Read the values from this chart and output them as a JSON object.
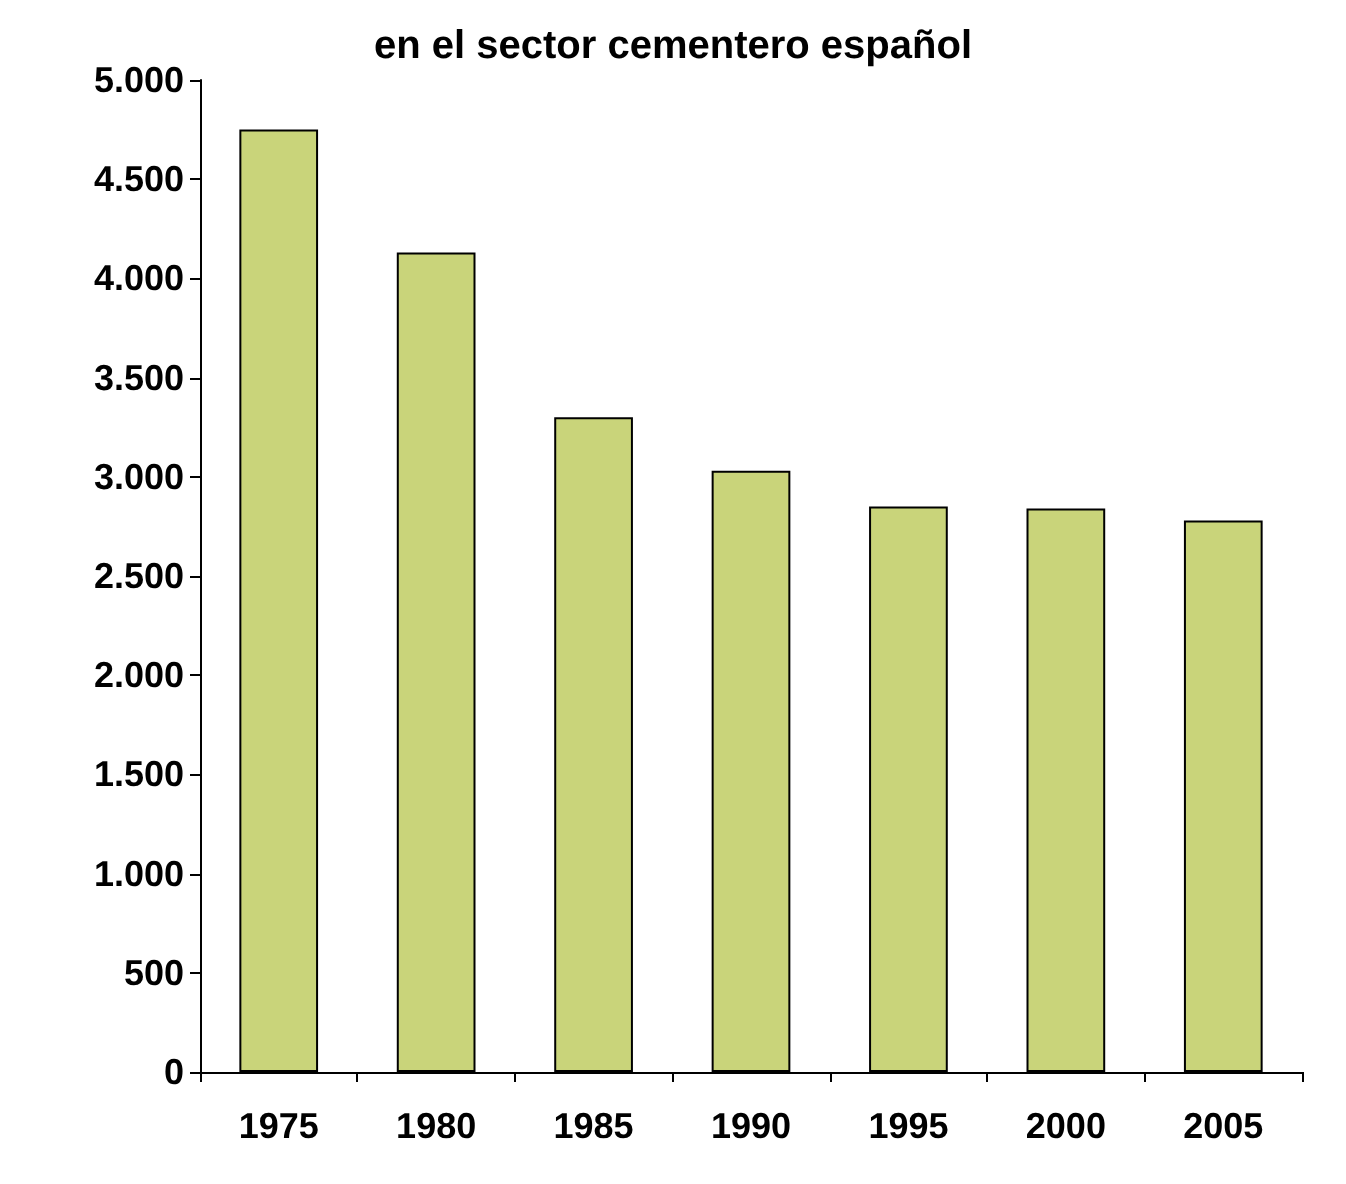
{
  "chart_data": {
    "type": "bar",
    "title": "en el sector cementero español",
    "categories": [
      "1975",
      "1980",
      "1985",
      "1990",
      "1995",
      "2000",
      "2005"
    ],
    "values": [
      4750,
      4130,
      3300,
      3030,
      2850,
      2840,
      2780
    ],
    "color": "#c9d47a",
    "ylim": [
      0,
      5000
    ],
    "yticks": [
      0,
      {
        "value": 500,
        "label": "500"
      },
      {
        "value": 1000,
        "label": "1.000"
      },
      {
        "value": 1500,
        "label": "1.500"
      },
      {
        "value": 2000,
        "label": "2.000"
      },
      {
        "value": 2500,
        "label": "2.500"
      },
      {
        "value": 3000,
        "label": "3.000"
      },
      {
        "value": 3500,
        "label": "3.500"
      },
      {
        "value": 4000,
        "label": "4.000"
      },
      {
        "value": 4500,
        "label": "4.500"
      },
      {
        "value": 5000,
        "label": "5.000"
      }
    ],
    "grid": false
  }
}
